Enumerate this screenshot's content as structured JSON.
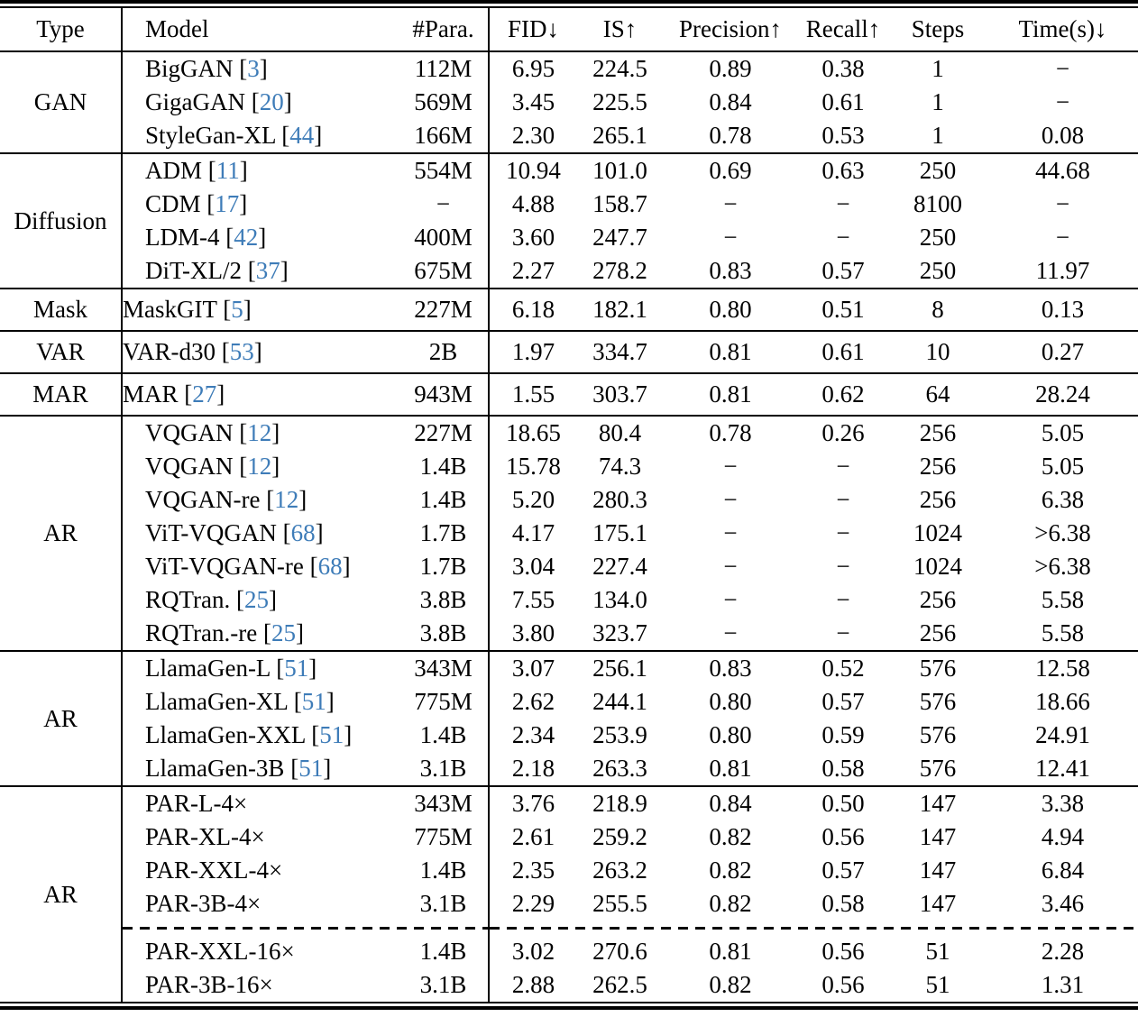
{
  "colors": {
    "citation_blue": "#3e7cb8",
    "text": "#000000",
    "rule": "#000000"
  },
  "table": {
    "columns": [
      "Type",
      "Model",
      "#Para.",
      "FID↓",
      "IS↑",
      "Precision↑",
      "Recall↑",
      "Steps",
      "Time(s)↓"
    ],
    "sections": [
      {
        "type": "GAN",
        "rows": [
          {
            "model": "BigGAN",
            "cite": "3",
            "para": "112M",
            "fid": "6.95",
            "is": "224.5",
            "precision": "0.89",
            "recall": "0.38",
            "steps": "1",
            "time": "−"
          },
          {
            "model": "GigaGAN",
            "cite": "20",
            "para": "569M",
            "fid": "3.45",
            "is": "225.5",
            "precision": "0.84",
            "recall": "0.61",
            "steps": "1",
            "time": "−"
          },
          {
            "model": "StyleGan-XL",
            "cite": "44",
            "para": "166M",
            "fid": "2.30",
            "is": "265.1",
            "precision": "0.78",
            "recall": "0.53",
            "steps": "1",
            "time": "0.08"
          }
        ]
      },
      {
        "type": "Diffusion",
        "rows": [
          {
            "model": "ADM",
            "cite": "11",
            "para": "554M",
            "fid": "10.94",
            "is": "101.0",
            "precision": "0.69",
            "recall": "0.63",
            "steps": "250",
            "time": "44.68"
          },
          {
            "model": "CDM",
            "cite": "17",
            "para": "−",
            "fid": "4.88",
            "is": "158.7",
            "precision": "−",
            "recall": "−",
            "steps": "8100",
            "time": "−"
          },
          {
            "model": "LDM-4",
            "cite": "42",
            "para": "400M",
            "fid": "3.60",
            "is": "247.7",
            "precision": "−",
            "recall": "−",
            "steps": "250",
            "time": "−"
          },
          {
            "model": "DiT-XL/2",
            "cite": "37",
            "para": "675M",
            "fid": "2.27",
            "is": "278.2",
            "precision": "0.83",
            "recall": "0.57",
            "steps": "250",
            "time": "11.97"
          }
        ]
      },
      {
        "type": "Mask",
        "rows": [
          {
            "model": "MaskGIT",
            "cite": "5",
            "para": "227M",
            "fid": "6.18",
            "is": "182.1",
            "precision": "0.80",
            "recall": "0.51",
            "steps": "8",
            "time": "0.13"
          }
        ]
      },
      {
        "type": "VAR",
        "rows": [
          {
            "model": "VAR-d30",
            "cite": "53",
            "para": "2B",
            "fid": "1.97",
            "is": "334.7",
            "precision": "0.81",
            "recall": "0.61",
            "steps": "10",
            "time": "0.27"
          }
        ]
      },
      {
        "type": "MAR",
        "rows": [
          {
            "model": "MAR",
            "cite": "27",
            "para": "943M",
            "fid": "1.55",
            "is": "303.7",
            "precision": "0.81",
            "recall": "0.62",
            "steps": "64",
            "time": "28.24"
          }
        ]
      },
      {
        "type": "AR",
        "rows": [
          {
            "model": "VQGAN",
            "cite": "12",
            "para": "227M",
            "fid": "18.65",
            "is": "80.4",
            "precision": "0.78",
            "recall": "0.26",
            "steps": "256",
            "time": "5.05"
          },
          {
            "model": "VQGAN",
            "cite": "12",
            "para": "1.4B",
            "fid": "15.78",
            "is": "74.3",
            "precision": "−",
            "recall": "−",
            "steps": "256",
            "time": "5.05"
          },
          {
            "model": "VQGAN-re",
            "cite": "12",
            "para": "1.4B",
            "fid": "5.20",
            "is": "280.3",
            "precision": "−",
            "recall": "−",
            "steps": "256",
            "time": "6.38"
          },
          {
            "model": "ViT-VQGAN",
            "cite": "68",
            "para": "1.7B",
            "fid": "4.17",
            "is": "175.1",
            "precision": "−",
            "recall": "−",
            "steps": "1024",
            "time": ">6.38"
          },
          {
            "model": "ViT-VQGAN-re",
            "cite": "68",
            "para": "1.7B",
            "fid": "3.04",
            "is": "227.4",
            "precision": "−",
            "recall": "−",
            "steps": "1024",
            "time": ">6.38"
          },
          {
            "model": "RQTran.",
            "cite": "25",
            "para": "3.8B",
            "fid": "7.55",
            "is": "134.0",
            "precision": "−",
            "recall": "−",
            "steps": "256",
            "time": "5.58"
          },
          {
            "model": "RQTran.-re",
            "cite": "25",
            "para": "3.8B",
            "fid": "3.80",
            "is": "323.7",
            "precision": "−",
            "recall": "−",
            "steps": "256",
            "time": "5.58"
          }
        ]
      },
      {
        "type": "AR",
        "rows": [
          {
            "model": "LlamaGen-L",
            "cite": "51",
            "para": "343M",
            "fid": "3.07",
            "is": "256.1",
            "precision": "0.83",
            "recall": "0.52",
            "steps": "576",
            "time": "12.58"
          },
          {
            "model": "LlamaGen-XL",
            "cite": "51",
            "para": "775M",
            "fid": "2.62",
            "is": "244.1",
            "precision": "0.80",
            "recall": "0.57",
            "steps": "576",
            "time": "18.66"
          },
          {
            "model": "LlamaGen-XXL",
            "cite": "51",
            "para": "1.4B",
            "fid": "2.34",
            "is": "253.9",
            "precision": "0.80",
            "recall": "0.59",
            "steps": "576",
            "time": "24.91"
          },
          {
            "model": "LlamaGen-3B",
            "cite": "51",
            "para": "3.1B",
            "fid": "2.18",
            "is": "263.3",
            "precision": "0.81",
            "recall": "0.58",
            "steps": "576",
            "time": "12.41"
          }
        ]
      },
      {
        "type": "AR",
        "rows": [
          {
            "model": "PAR-L-4×",
            "cite": null,
            "para": "343M",
            "fid": "3.76",
            "is": "218.9",
            "precision": "0.84",
            "recall": "0.50",
            "steps": "147",
            "time": "3.38"
          },
          {
            "model": "PAR-XL-4×",
            "cite": null,
            "para": "775M",
            "fid": "2.61",
            "is": "259.2",
            "precision": "0.82",
            "recall": "0.56",
            "steps": "147",
            "time": "4.94"
          },
          {
            "model": "PAR-XXL-4×",
            "cite": null,
            "para": "1.4B",
            "fid": "2.35",
            "is": "263.2",
            "precision": "0.82",
            "recall": "0.57",
            "steps": "147",
            "time": "6.84"
          },
          {
            "model": "PAR-3B-4×",
            "cite": null,
            "para": "3.1B",
            "fid": "2.29",
            "is": "255.5",
            "precision": "0.82",
            "recall": "0.58",
            "steps": "147",
            "time": "3.46"
          }
        ],
        "rows_after_dash": [
          {
            "model": "PAR-XXL-16×",
            "cite": null,
            "para": "1.4B",
            "fid": "3.02",
            "is": "270.6",
            "precision": "0.81",
            "recall": "0.56",
            "steps": "51",
            "time": "2.28"
          },
          {
            "model": "PAR-3B-16×",
            "cite": null,
            "para": "3.1B",
            "fid": "2.88",
            "is": "262.5",
            "precision": "0.82",
            "recall": "0.56",
            "steps": "51",
            "time": "1.31"
          }
        ]
      }
    ]
  }
}
